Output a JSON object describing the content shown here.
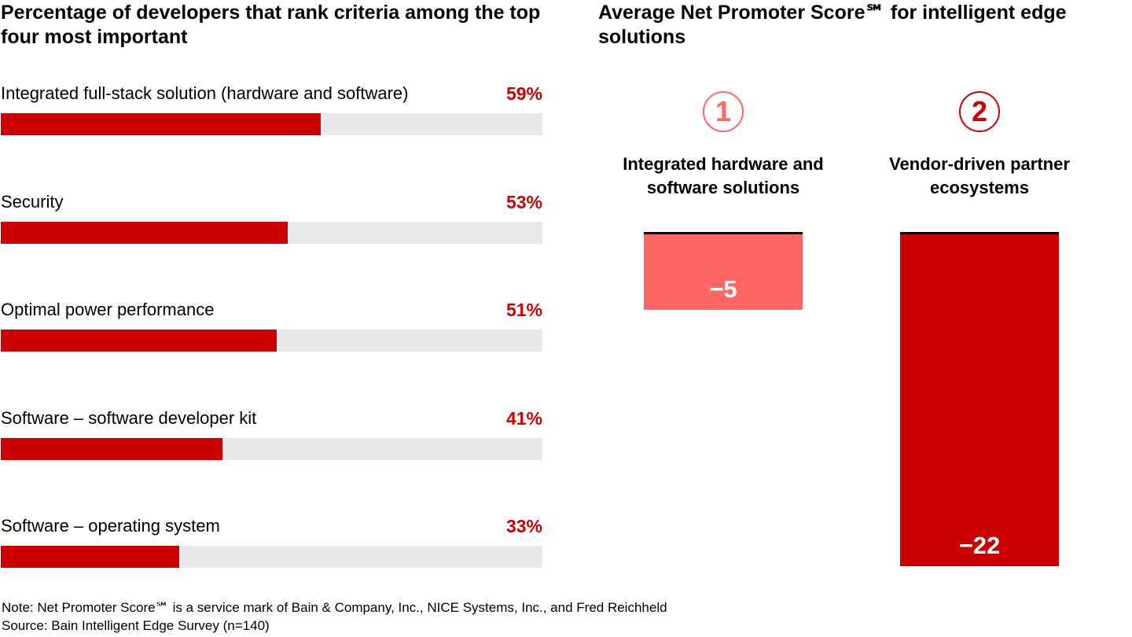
{
  "chart_data": [
    {
      "type": "bar",
      "orientation": "horizontal",
      "title": "Percentage of developers that rank criteria among the top four most important",
      "categories": [
        "Integrated full-stack solution (hardware and software)",
        "Security",
        "Optimal power performance",
        "Software – software developer kit",
        "Software – operating system"
      ],
      "values": [
        59,
        53,
        51,
        41,
        33
      ],
      "value_labels": [
        "59%",
        "53%",
        "51%",
        "41%",
        "33%"
      ],
      "xlim": [
        0,
        100
      ],
      "colors": {
        "fill": "#cc0000",
        "track": "#e9e9e9",
        "label": "#cc0000"
      }
    },
    {
      "type": "bar",
      "title": "Average Net Promoter Score℠ for intelligent edge solutions",
      "categories": [
        "Integrated hardware and software solutions",
        "Vendor-driven partner ecosystems"
      ],
      "ranks": [
        "1",
        "2"
      ],
      "values": [
        -5,
        -22
      ],
      "value_labels": [
        "−5",
        "−22"
      ],
      "ylim": [
        -22,
        0
      ],
      "colors": [
        "#ff6666",
        "#cc0000"
      ]
    }
  ],
  "footer": {
    "note": "Note: Net Promoter Score℠ is a service mark of Bain & Company, Inc., NICE Systems, Inc., and Fred Reichheld",
    "source": "Source: Bain Intelligent Edge Survey (n=140)"
  }
}
